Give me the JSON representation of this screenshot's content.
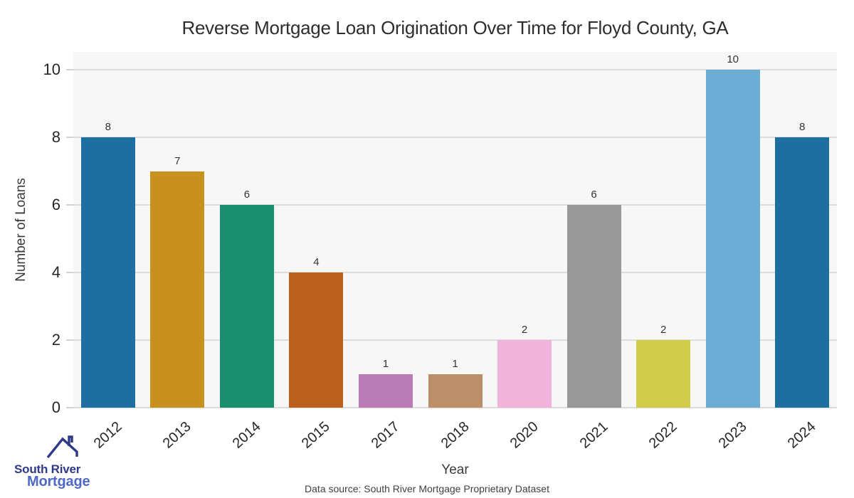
{
  "page": {
    "title": "Reverse Mortgage Loan Origination Over Time for Floyd County, GA",
    "xlabel": "Year",
    "ylabel": "Number of Loans",
    "source_note": "Data source: South River Mortgage Proprietary Dataset"
  },
  "logo": {
    "line1": "South River",
    "line2": "Mortgage",
    "navy": "#2e3a87",
    "blue": "#4f68c5"
  },
  "chart_data": {
    "type": "bar",
    "title": "Reverse Mortgage Loan Origination Over Time for Floyd County, GA",
    "xlabel": "Year",
    "ylabel": "Number of Loans",
    "categories": [
      "2012",
      "2013",
      "2014",
      "2015",
      "2017",
      "2018",
      "2020",
      "2021",
      "2022",
      "2023",
      "2024"
    ],
    "values": [
      8,
      7,
      6,
      4,
      1,
      1,
      2,
      6,
      2,
      10,
      8
    ],
    "bar_colors": [
      "#1d6fa1",
      "#c8901c",
      "#19906d",
      "#bb611d",
      "#bb7cb6",
      "#bd8f68",
      "#f1b2db",
      "#989898",
      "#d3cb4b",
      "#6cadd6",
      "#1d6fa1"
    ],
    "value_labels": [
      8,
      7,
      6,
      4,
      1,
      1,
      2,
      6,
      2,
      10,
      8
    ],
    "yticks": [
      0,
      2,
      4,
      6,
      8,
      10
    ],
    "ylim": [
      0,
      10.53
    ],
    "grid": true,
    "legend_position": "none",
    "plot_background": "#f7f7f7",
    "grid_color": "#dcdcdc"
  }
}
